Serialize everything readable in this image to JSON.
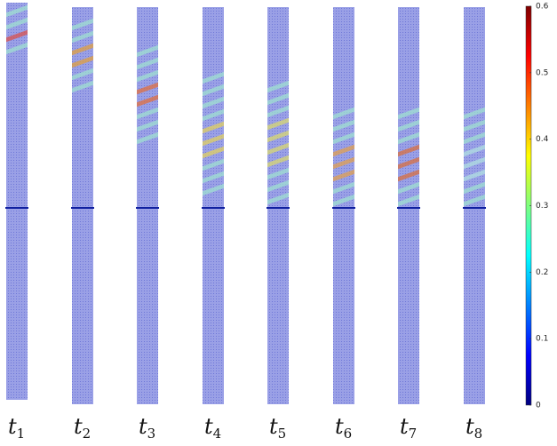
{
  "panels": [
    {
      "symbol": "t",
      "index": "1"
    },
    {
      "symbol": "t",
      "index": "2"
    },
    {
      "symbol": "t",
      "index": "3"
    },
    {
      "symbol": "t",
      "index": "4"
    },
    {
      "symbol": "t",
      "index": "5"
    },
    {
      "symbol": "t",
      "index": "6"
    },
    {
      "symbol": "t",
      "index": "7"
    },
    {
      "symbol": "t",
      "index": "8"
    }
  ],
  "colorbar": {
    "lim": [
      0,
      0.6
    ],
    "ticks": [
      0,
      0.1,
      0.2,
      0.3,
      0.4,
      0.5,
      0.6
    ]
  }
}
